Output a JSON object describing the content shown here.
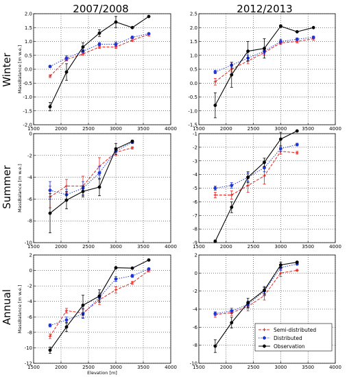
{
  "column_titles": [
    "2007/2008",
    "2012/2013"
  ],
  "row_titles": [
    "Winter",
    "Summer",
    "Annual"
  ],
  "legend": {
    "entries": [
      {
        "label": "Semi-distributed",
        "color": "#e8211c",
        "dash": "dashed",
        "marker": "+"
      },
      {
        "label": "Distributed",
        "color": "#1f35d6",
        "dash": "dotted",
        "marker": "o"
      },
      {
        "label": "Observation",
        "color": "#000000",
        "dash": "solid",
        "marker": "o"
      }
    ]
  },
  "chart_data": [
    {
      "type": "line",
      "season": "Winter",
      "period": "2007/2008",
      "ylabel": "MassBalance [m w.e.]",
      "xlabel": "",
      "xlim": [
        1500,
        4000
      ],
      "ylim": [
        -2.0,
        2.0
      ],
      "xticks": [
        1500,
        2000,
        2500,
        3000,
        3500,
        4000
      ],
      "xtick_labels": [
        "1500",
        "2000",
        "2500",
        "3000",
        "3500",
        "4000"
      ],
      "yticks": [
        -2.0,
        -1.5,
        -1.0,
        -0.5,
        0.0,
        0.5,
        1.0,
        1.5,
        2.0
      ],
      "ytick_labels": [
        "-2.0",
        "-1.5",
        "-1.0",
        "-0.5",
        "0.0",
        "0.5",
        "1.0",
        "1.5",
        "2.0"
      ],
      "grid": true,
      "x": [
        1800,
        2100,
        2400,
        2700,
        3000,
        3300,
        3600
      ],
      "series": [
        {
          "name": "Semi-distributed",
          "values": [
            -0.25,
            0.35,
            0.55,
            0.8,
            0.8,
            1.05,
            1.25
          ],
          "err": [
            0.05,
            0.05,
            0.05,
            0.05,
            0.05,
            0.05,
            0.05
          ]
        },
        {
          "name": "Distributed",
          "values": [
            0.1,
            0.4,
            0.65,
            0.9,
            0.9,
            1.15,
            1.28
          ],
          "err": [
            0.04,
            0.08,
            0.06,
            0.06,
            0.08,
            0.04,
            0.03
          ]
        },
        {
          "name": "Observation",
          "values": [
            -1.35,
            -0.1,
            0.8,
            1.3,
            1.7,
            1.5,
            1.9
          ],
          "err": [
            0.15,
            0.3,
            0.15,
            0.12,
            0.2,
            0,
            0
          ]
        }
      ]
    },
    {
      "type": "line",
      "season": "Winter",
      "period": "2012/2013",
      "ylabel": "",
      "xlabel": "",
      "xlim": [
        1500,
        4000
      ],
      "ylim": [
        -1.5,
        2.5
      ],
      "xticks": [
        1500,
        2000,
        2500,
        3000,
        3500,
        4000
      ],
      "xtick_labels": [
        "1500",
        "2000",
        "2500",
        "3000",
        "3500",
        "4000"
      ],
      "yticks": [
        -1.5,
        -1.0,
        -0.5,
        0.0,
        0.5,
        1.0,
        1.5,
        2.0,
        2.5
      ],
      "ytick_labels": [
        "-1.5",
        "-1.0",
        "-0.5",
        "0.0",
        "0.5",
        "1.0",
        "1.5",
        "2.0",
        "2.5"
      ],
      "grid": true,
      "x": [
        1800,
        2100,
        2400,
        2700,
        3000,
        3300,
        3600
      ],
      "series": [
        {
          "name": "Semi-distributed",
          "values": [
            0.05,
            0.5,
            0.8,
            1.1,
            1.45,
            1.5,
            1.6
          ],
          "err": [
            0.12,
            0.1,
            0.1,
            0.1,
            0.06,
            0.05,
            0.05
          ]
        },
        {
          "name": "Distributed",
          "values": [
            0.4,
            0.65,
            0.9,
            1.15,
            1.5,
            1.58,
            1.65
          ],
          "err": [
            0.06,
            0.1,
            0.1,
            0.1,
            0.08,
            0.05,
            0.04
          ]
        },
        {
          "name": "Observation",
          "values": [
            -0.8,
            0.3,
            1.15,
            1.25,
            2.05,
            1.85,
            2.0
          ],
          "err": [
            0.45,
            0.45,
            0.35,
            0.35,
            0.05,
            0,
            0
          ]
        }
      ]
    },
    {
      "type": "line",
      "season": "Summer",
      "period": "2007/2008",
      "ylabel": "MassBalance [m w.e.]",
      "xlabel": "",
      "xlim": [
        1500,
        4000
      ],
      "ylim": [
        -10,
        0
      ],
      "xticks": [
        1500,
        2000,
        2500,
        3000,
        3500,
        4000
      ],
      "xtick_labels": [
        "1500",
        "2000",
        "2500",
        "3000",
        "3500",
        "4000"
      ],
      "yticks": [
        -10,
        -8,
        -6,
        -4,
        -2,
        0
      ],
      "ytick_labels": [
        "-10",
        "-8",
        "-6",
        "-4",
        "-2",
        "0"
      ],
      "grid": true,
      "x": [
        1800,
        2100,
        2400,
        2700,
        3000,
        3300
      ],
      "series": [
        {
          "name": "Semi-distributed",
          "values": [
            -5.8,
            -4.8,
            -4.8,
            -3.0,
            -1.7,
            -1.3
          ],
          "err": [
            1.0,
            0.6,
            0.9,
            0.8,
            0.3,
            0.1
          ]
        },
        {
          "name": "Distributed",
          "values": [
            -5.2,
            -5.6,
            -5.0,
            -3.6,
            -1.6,
            -0.8
          ],
          "err": [
            0.8,
            0.5,
            0.6,
            0.6,
            0.3,
            0.1
          ]
        },
        {
          "name": "Observation",
          "values": [
            -7.3,
            -6.1,
            -5.3,
            -4.9,
            -1.4,
            -0.7
          ],
          "err": [
            1.8,
            0.8,
            0.5,
            0.8,
            0.5,
            0.1
          ]
        }
      ]
    },
    {
      "type": "line",
      "season": "Summer",
      "period": "2012/2013",
      "ylabel": "",
      "xlabel": "",
      "xlim": [
        1500,
        4000
      ],
      "ylim": [
        -9,
        -1
      ],
      "xticks": [
        1500,
        2000,
        2500,
        3000,
        3500,
        4000
      ],
      "xtick_labels": [
        "1500",
        "2000",
        "2500",
        "3000",
        "3500",
        "4000"
      ],
      "yticks": [
        -9,
        -8,
        -7,
        -6,
        -5,
        -4,
        -3,
        -2,
        -1
      ],
      "ytick_labels": [
        "-9",
        "-8",
        "-7",
        "-6",
        "-5",
        "-4",
        "-3",
        "-2",
        "-1"
      ],
      "grid": true,
      "x": [
        1800,
        2100,
        2400,
        2700,
        3000,
        3300
      ],
      "series": [
        {
          "name": "Semi-distributed",
          "values": [
            -5.5,
            -5.5,
            -4.8,
            -4.1,
            -2.3,
            -2.4
          ],
          "err": [
            0.2,
            0.3,
            0.5,
            0.6,
            0.2,
            0.1
          ]
        },
        {
          "name": "Distributed",
          "values": [
            -5.0,
            -4.8,
            -4.2,
            -3.5,
            -2.1,
            -1.8
          ],
          "err": [
            0.15,
            0.2,
            0.3,
            0.3,
            0.2,
            0.1
          ]
        },
        {
          "name": "Observation",
          "values": [
            -8.9,
            -6.4,
            -4.2,
            -3.1,
            -1.4,
            -0.8
          ],
          "err": [
            0.1,
            0.4,
            0.4,
            0.3,
            0.5,
            0.05
          ]
        }
      ]
    },
    {
      "type": "line",
      "season": "Annual",
      "period": "2007/2008",
      "ylabel": "MassBalance [m w.e.]",
      "xlabel": "Elevation [m]",
      "xlim": [
        1500,
        4000
      ],
      "ylim": [
        -12,
        2
      ],
      "xticks": [
        1500,
        2000,
        2500,
        3000,
        3500,
        4000
      ],
      "xtick_labels": [
        "1500",
        "2000",
        "2500",
        "3000",
        "3500",
        "4000"
      ],
      "yticks": [
        -12,
        -10,
        -8,
        -6,
        -4,
        -2,
        0,
        2
      ],
      "ytick_labels": [
        "-12",
        "-10",
        "-8",
        "-6",
        "-4",
        "-2",
        "0",
        "2"
      ],
      "grid": true,
      "x": [
        1800,
        2100,
        2400,
        2700,
        3000,
        3300,
        3600
      ],
      "series": [
        {
          "name": "Semi-distributed",
          "values": [
            -8.5,
            -5.2,
            -5.5,
            -3.8,
            -2.5,
            -1.6,
            0.0
          ],
          "err": [
            0.3,
            0.3,
            0.6,
            0.6,
            0.4,
            0.2,
            0.2
          ]
        },
        {
          "name": "Distributed",
          "values": [
            -7.1,
            -6.4,
            -5.6,
            -3.5,
            -1.1,
            -0.7,
            0.2
          ],
          "err": [
            0.2,
            0.4,
            0.6,
            0.6,
            0.3,
            0.2,
            0.1
          ]
        },
        {
          "name": "Observation",
          "values": [
            -10.3,
            -7.3,
            -4.5,
            -3.3,
            0.35,
            0.3,
            1.35
          ],
          "err": [
            0.4,
            0.6,
            1.3,
            0.8,
            0.1,
            0.1,
            0.1
          ]
        }
      ]
    },
    {
      "type": "line",
      "season": "Annual",
      "period": "2012/2013",
      "ylabel": "",
      "xlabel": "",
      "xlim": [
        1500,
        4000
      ],
      "ylim": [
        -10,
        2
      ],
      "xticks": [
        1500,
        2000,
        2500,
        3000,
        3500,
        4000
      ],
      "xtick_labels": [
        "1500",
        "2000",
        "2500",
        "3000",
        "3500",
        "4000"
      ],
      "yticks": [
        -10,
        -8,
        -6,
        -4,
        -2,
        0,
        2
      ],
      "ytick_labels": [
        "-10",
        "-8",
        "-6",
        "-4",
        "-2",
        "0",
        "2"
      ],
      "grid": true,
      "x": [
        1800,
        2100,
        2400,
        2700,
        3000,
        3300
      ],
      "series": [
        {
          "name": "Semi-distributed",
          "values": [
            -4.6,
            -4.4,
            -3.7,
            -2.5,
            0.0,
            0.3
          ],
          "err": [
            0.3,
            0.3,
            0.5,
            0.5,
            0.4,
            0.1
          ]
        },
        {
          "name": "Distributed",
          "values": [
            -4.5,
            -4.2,
            -3.5,
            -2.0,
            0.6,
            1.0
          ],
          "err": [
            0.2,
            0.3,
            0.4,
            0.4,
            0.3,
            0.1
          ]
        },
        {
          "name": "Observation",
          "values": [
            -8.1,
            -5.5,
            -3.3,
            -1.9,
            0.9,
            1.2
          ],
          "err": [
            0.7,
            0.6,
            0.5,
            0.4,
            0.3,
            0.1
          ]
        }
      ]
    }
  ]
}
